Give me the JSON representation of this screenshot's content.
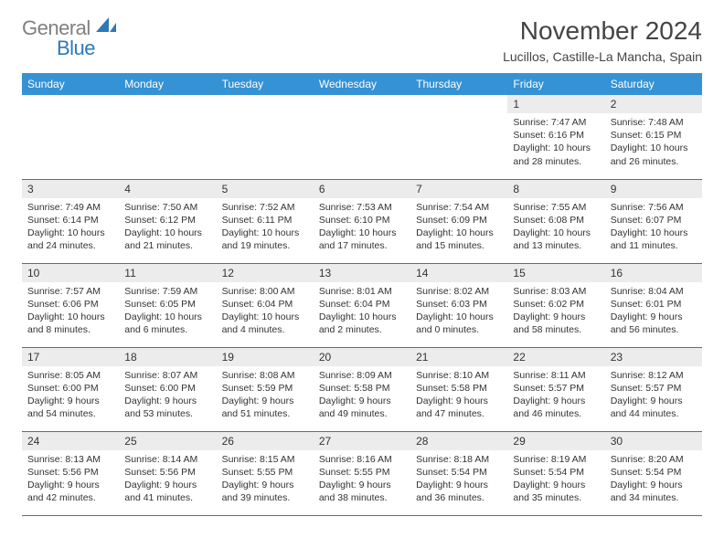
{
  "logo": {
    "grey": "General",
    "blue": "Blue"
  },
  "title": "November 2024",
  "location": "Lucillos, Castille-La Mancha, Spain",
  "header_bg": "#3592d4",
  "header_fg": "#ffffff",
  "daynum_bg": "#ececec",
  "rule_color": "#2d79b8",
  "days_of_week": [
    "Sunday",
    "Monday",
    "Tuesday",
    "Wednesday",
    "Thursday",
    "Friday",
    "Saturday"
  ],
  "weeks": [
    [
      {
        "n": "",
        "sr": "",
        "ss": "",
        "dl": ""
      },
      {
        "n": "",
        "sr": "",
        "ss": "",
        "dl": ""
      },
      {
        "n": "",
        "sr": "",
        "ss": "",
        "dl": ""
      },
      {
        "n": "",
        "sr": "",
        "ss": "",
        "dl": ""
      },
      {
        "n": "",
        "sr": "",
        "ss": "",
        "dl": ""
      },
      {
        "n": "1",
        "sr": "Sunrise: 7:47 AM",
        "ss": "Sunset: 6:16 PM",
        "dl": "Daylight: 10 hours and 28 minutes."
      },
      {
        "n": "2",
        "sr": "Sunrise: 7:48 AM",
        "ss": "Sunset: 6:15 PM",
        "dl": "Daylight: 10 hours and 26 minutes."
      }
    ],
    [
      {
        "n": "3",
        "sr": "Sunrise: 7:49 AM",
        "ss": "Sunset: 6:14 PM",
        "dl": "Daylight: 10 hours and 24 minutes."
      },
      {
        "n": "4",
        "sr": "Sunrise: 7:50 AM",
        "ss": "Sunset: 6:12 PM",
        "dl": "Daylight: 10 hours and 21 minutes."
      },
      {
        "n": "5",
        "sr": "Sunrise: 7:52 AM",
        "ss": "Sunset: 6:11 PM",
        "dl": "Daylight: 10 hours and 19 minutes."
      },
      {
        "n": "6",
        "sr": "Sunrise: 7:53 AM",
        "ss": "Sunset: 6:10 PM",
        "dl": "Daylight: 10 hours and 17 minutes."
      },
      {
        "n": "7",
        "sr": "Sunrise: 7:54 AM",
        "ss": "Sunset: 6:09 PM",
        "dl": "Daylight: 10 hours and 15 minutes."
      },
      {
        "n": "8",
        "sr": "Sunrise: 7:55 AM",
        "ss": "Sunset: 6:08 PM",
        "dl": "Daylight: 10 hours and 13 minutes."
      },
      {
        "n": "9",
        "sr": "Sunrise: 7:56 AM",
        "ss": "Sunset: 6:07 PM",
        "dl": "Daylight: 10 hours and 11 minutes."
      }
    ],
    [
      {
        "n": "10",
        "sr": "Sunrise: 7:57 AM",
        "ss": "Sunset: 6:06 PM",
        "dl": "Daylight: 10 hours and 8 minutes."
      },
      {
        "n": "11",
        "sr": "Sunrise: 7:59 AM",
        "ss": "Sunset: 6:05 PM",
        "dl": "Daylight: 10 hours and 6 minutes."
      },
      {
        "n": "12",
        "sr": "Sunrise: 8:00 AM",
        "ss": "Sunset: 6:04 PM",
        "dl": "Daylight: 10 hours and 4 minutes."
      },
      {
        "n": "13",
        "sr": "Sunrise: 8:01 AM",
        "ss": "Sunset: 6:04 PM",
        "dl": "Daylight: 10 hours and 2 minutes."
      },
      {
        "n": "14",
        "sr": "Sunrise: 8:02 AM",
        "ss": "Sunset: 6:03 PM",
        "dl": "Daylight: 10 hours and 0 minutes."
      },
      {
        "n": "15",
        "sr": "Sunrise: 8:03 AM",
        "ss": "Sunset: 6:02 PM",
        "dl": "Daylight: 9 hours and 58 minutes."
      },
      {
        "n": "16",
        "sr": "Sunrise: 8:04 AM",
        "ss": "Sunset: 6:01 PM",
        "dl": "Daylight: 9 hours and 56 minutes."
      }
    ],
    [
      {
        "n": "17",
        "sr": "Sunrise: 8:05 AM",
        "ss": "Sunset: 6:00 PM",
        "dl": "Daylight: 9 hours and 54 minutes."
      },
      {
        "n": "18",
        "sr": "Sunrise: 8:07 AM",
        "ss": "Sunset: 6:00 PM",
        "dl": "Daylight: 9 hours and 53 minutes."
      },
      {
        "n": "19",
        "sr": "Sunrise: 8:08 AM",
        "ss": "Sunset: 5:59 PM",
        "dl": "Daylight: 9 hours and 51 minutes."
      },
      {
        "n": "20",
        "sr": "Sunrise: 8:09 AM",
        "ss": "Sunset: 5:58 PM",
        "dl": "Daylight: 9 hours and 49 minutes."
      },
      {
        "n": "21",
        "sr": "Sunrise: 8:10 AM",
        "ss": "Sunset: 5:58 PM",
        "dl": "Daylight: 9 hours and 47 minutes."
      },
      {
        "n": "22",
        "sr": "Sunrise: 8:11 AM",
        "ss": "Sunset: 5:57 PM",
        "dl": "Daylight: 9 hours and 46 minutes."
      },
      {
        "n": "23",
        "sr": "Sunrise: 8:12 AM",
        "ss": "Sunset: 5:57 PM",
        "dl": "Daylight: 9 hours and 44 minutes."
      }
    ],
    [
      {
        "n": "24",
        "sr": "Sunrise: 8:13 AM",
        "ss": "Sunset: 5:56 PM",
        "dl": "Daylight: 9 hours and 42 minutes."
      },
      {
        "n": "25",
        "sr": "Sunrise: 8:14 AM",
        "ss": "Sunset: 5:56 PM",
        "dl": "Daylight: 9 hours and 41 minutes."
      },
      {
        "n": "26",
        "sr": "Sunrise: 8:15 AM",
        "ss": "Sunset: 5:55 PM",
        "dl": "Daylight: 9 hours and 39 minutes."
      },
      {
        "n": "27",
        "sr": "Sunrise: 8:16 AM",
        "ss": "Sunset: 5:55 PM",
        "dl": "Daylight: 9 hours and 38 minutes."
      },
      {
        "n": "28",
        "sr": "Sunrise: 8:18 AM",
        "ss": "Sunset: 5:54 PM",
        "dl": "Daylight: 9 hours and 36 minutes."
      },
      {
        "n": "29",
        "sr": "Sunrise: 8:19 AM",
        "ss": "Sunset: 5:54 PM",
        "dl": "Daylight: 9 hours and 35 minutes."
      },
      {
        "n": "30",
        "sr": "Sunrise: 8:20 AM",
        "ss": "Sunset: 5:54 PM",
        "dl": "Daylight: 9 hours and 34 minutes."
      }
    ]
  ]
}
